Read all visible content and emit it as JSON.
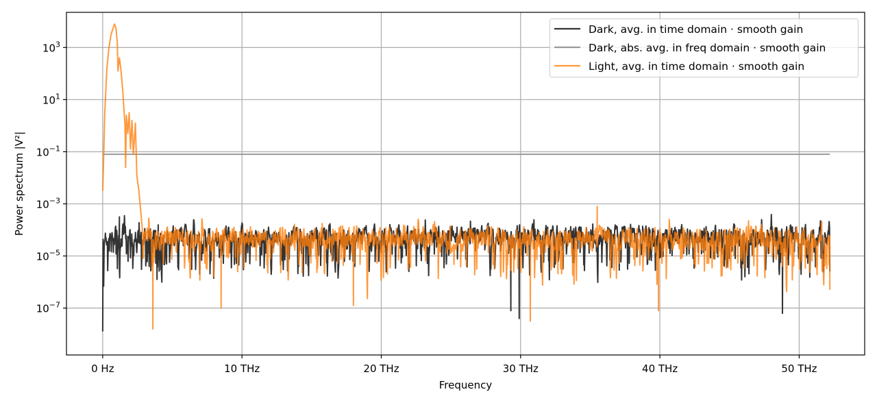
{
  "chart_data": {
    "type": "line",
    "title": "",
    "xlabel": "Frequency",
    "ylabel": "Power spectrum |V²|",
    "x_unit": "THz",
    "xlim": [
      -2.6,
      54.7
    ],
    "ylim_log10": [
      -8.8,
      4.35
    ],
    "yscale": "log",
    "grid": true,
    "legend_position": "upper right",
    "x_ticks": [
      {
        "value": 0,
        "label": "0 Hz"
      },
      {
        "value": 10,
        "label": "10 THz"
      },
      {
        "value": 20,
        "label": "20 THz"
      },
      {
        "value": 30,
        "label": "30 THz"
      },
      {
        "value": 40,
        "label": "40 THz"
      },
      {
        "value": 50,
        "label": "50 THz"
      }
    ],
    "y_ticks": [
      {
        "exp": 3,
        "base": "10",
        "sup": "3"
      },
      {
        "exp": 1,
        "base": "10",
        "sup": "1"
      },
      {
        "exp": -1,
        "base": "10",
        "sup": "−1"
      },
      {
        "exp": -3,
        "base": "10",
        "sup": "−3"
      },
      {
        "exp": -5,
        "base": "10",
        "sup": "−5"
      },
      {
        "exp": -7,
        "base": "10",
        "sup": "−7"
      }
    ],
    "series": [
      {
        "name": "Dark, avg. in time domain · smooth gain",
        "color": "#333333",
        "opacity": 1.0,
        "x_range": [
          0,
          52.2
        ],
        "noise_log10_center": -4.2,
        "noise_log10_amplitude": 0.55,
        "noise_dip_probability": 0.18,
        "noise_dip_depth": 1.3,
        "seed": 7,
        "anchor_points": [
          {
            "x": 0.0,
            "log10_y": -7.9
          },
          {
            "x": 0.1,
            "log10_y": -4.8
          },
          {
            "x": 1.2,
            "log10_y": -3.5
          },
          {
            "x": 3.9,
            "log10_y": -5.9
          },
          {
            "x": 29.3,
            "log10_y": -7.1
          },
          {
            "x": 29.9,
            "log10_y": -7.4
          },
          {
            "x": 48.8,
            "log10_y": -7.2
          },
          {
            "x": 52.2,
            "log10_y": -5.6
          }
        ]
      },
      {
        "name": "Dark, abs. avg. in freq domain · smooth gain",
        "color": "#999999",
        "opacity": 1.0,
        "x": [
          0,
          52.2
        ],
        "y": [
          0.08,
          0.08
        ]
      },
      {
        "name": "Light, avg. in time domain · smooth gain",
        "color": "#ff7f0e",
        "opacity": 0.8,
        "x_range": [
          0,
          52.2
        ],
        "noise_log10_center": -4.3,
        "noise_log10_amplitude": 0.6,
        "noise_dip_probability": 0.15,
        "noise_dip_depth": 1.4,
        "seed": 13,
        "low_freq_peak": [
          {
            "x": 0.0,
            "log10_y": -2.5
          },
          {
            "x": 0.05,
            "log10_y": -1.6
          },
          {
            "x": 0.15,
            "log10_y": 0.5
          },
          {
            "x": 0.3,
            "log10_y": 2.2
          },
          {
            "x": 0.45,
            "log10_y": 3.0
          },
          {
            "x": 0.6,
            "log10_y": 3.5
          },
          {
            "x": 0.75,
            "log10_y": 3.75
          },
          {
            "x": 0.85,
            "log10_y": 3.9
          },
          {
            "x": 0.95,
            "log10_y": 3.75
          },
          {
            "x": 1.05,
            "log10_y": 3.2
          },
          {
            "x": 1.1,
            "log10_y": 2.1
          },
          {
            "x": 1.2,
            "log10_y": 2.6
          },
          {
            "x": 1.3,
            "log10_y": 2.2
          },
          {
            "x": 1.45,
            "log10_y": 1.3
          },
          {
            "x": 1.6,
            "log10_y": 0.0
          },
          {
            "x": 1.65,
            "log10_y": -1.6
          },
          {
            "x": 1.7,
            "log10_y": 0.4
          },
          {
            "x": 1.8,
            "log10_y": -0.3
          },
          {
            "x": 1.9,
            "log10_y": 0.5
          },
          {
            "x": 2.0,
            "log10_y": -0.9
          },
          {
            "x": 2.1,
            "log10_y": 0.2
          },
          {
            "x": 2.2,
            "log10_y": -1.1
          },
          {
            "x": 2.35,
            "log10_y": 0.1
          },
          {
            "x": 2.45,
            "log10_y": -1.9
          },
          {
            "x": 2.6,
            "log10_y": -2.5
          },
          {
            "x": 2.75,
            "log10_y": -3.4
          },
          {
            "x": 2.85,
            "log10_y": -4.0
          }
        ],
        "anchor_points": [
          {
            "x": 3.6,
            "log10_y": -7.8
          },
          {
            "x": 8.5,
            "log10_y": -7.0
          },
          {
            "x": 18.0,
            "log10_y": -6.9
          },
          {
            "x": 30.7,
            "log10_y": -7.5
          },
          {
            "x": 35.5,
            "log10_y": -3.1
          },
          {
            "x": 39.9,
            "log10_y": -7.1
          },
          {
            "x": 52.2,
            "log10_y": -6.3
          }
        ]
      }
    ]
  },
  "legend": {
    "items": [
      {
        "label": "Dark, avg. in time domain · smooth gain",
        "color": "#333333"
      },
      {
        "label": "Dark, abs. avg. in freq domain · smooth gain",
        "color": "#999999"
      },
      {
        "label": "Light, avg. in time domain · smooth gain",
        "color": "#ff7f0e"
      }
    ]
  }
}
